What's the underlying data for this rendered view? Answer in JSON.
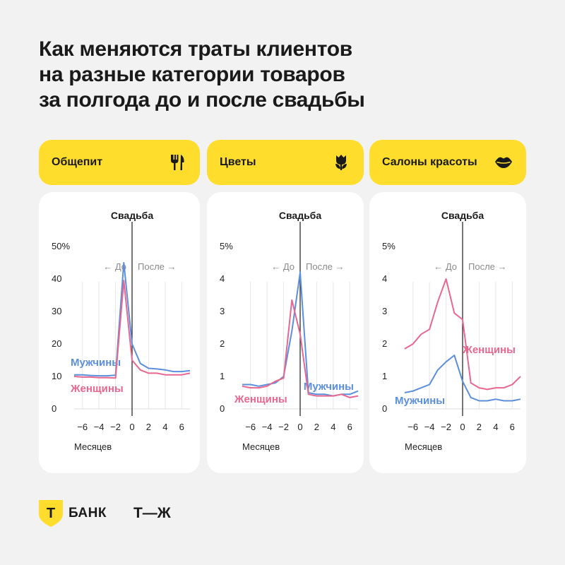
{
  "title_lines": [
    "Как меняются траты клиентов",
    "на разные категории товаров",
    "за полгода до и после свадьбы"
  ],
  "labels": {
    "wedding": "Свадьба",
    "before": "← До",
    "after": "После →",
    "months": "Месяцев"
  },
  "colors": {
    "accent": "#ffdd2d",
    "men": "#5b8fdc",
    "women": "#e8678f"
  },
  "footer": {
    "bank": "БАНК",
    "tzh": "Т—Ж",
    "bank_logo_letter": "Т"
  },
  "chart_data": [
    {
      "type": "line",
      "category": "Общепит",
      "icon": "fork-knife-icon",
      "x": [
        -7,
        -6,
        -5,
        -4,
        -3,
        -2,
        -1,
        0,
        1,
        2,
        3,
        4,
        5,
        6,
        7
      ],
      "ylim": [
        0,
        50
      ],
      "yticks": [
        "0",
        "10",
        "20",
        "30",
        "40",
        "50%"
      ],
      "xticks": [
        "−6",
        "−4",
        "−2",
        "0",
        "2",
        "4",
        "6"
      ],
      "series": [
        {
          "name": "Мужчины",
          "values": [
            10.5,
            10.5,
            10.3,
            10.2,
            10.2,
            10.4,
            45.0,
            20.0,
            14.0,
            12.5,
            12.3,
            12.0,
            11.5,
            11.5,
            11.8
          ]
        },
        {
          "name": "Женщины",
          "values": [
            10.0,
            9.8,
            9.8,
            9.6,
            9.6,
            9.5,
            39.5,
            15.0,
            12.0,
            11.0,
            11.0,
            10.5,
            10.5,
            10.5,
            11.0
          ]
        }
      ]
    },
    {
      "type": "line",
      "category": "Цветы",
      "icon": "tulip-icon",
      "x": [
        -7,
        -6,
        -5,
        -4,
        -3,
        -2,
        -1,
        0,
        1,
        2,
        3,
        4,
        5,
        6,
        7
      ],
      "ylim": [
        0,
        5
      ],
      "yticks": [
        "0",
        "1",
        "2",
        "3",
        "4",
        "5%"
      ],
      "xticks": [
        "−6",
        "−4",
        "−2",
        "0",
        "2",
        "4",
        "6"
      ],
      "series": [
        {
          "name": "Мужчины",
          "values": [
            0.75,
            0.75,
            0.7,
            0.75,
            0.8,
            1.0,
            2.4,
            4.2,
            0.5,
            0.45,
            0.45,
            0.4,
            0.45,
            0.45,
            0.55
          ]
        },
        {
          "name": "Женщины",
          "values": [
            0.7,
            0.65,
            0.65,
            0.7,
            0.85,
            0.95,
            3.35,
            2.3,
            0.45,
            0.4,
            0.4,
            0.4,
            0.45,
            0.35,
            0.4
          ]
        }
      ]
    },
    {
      "type": "line",
      "category": "Салоны красоты",
      "icon": "lips-icon",
      "x": [
        -7,
        -6,
        -5,
        -4,
        -3,
        -2,
        -1,
        0,
        1,
        2,
        3,
        4,
        5,
        6,
        7
      ],
      "ylim": [
        0,
        5
      ],
      "yticks": [
        "0",
        "1",
        "2",
        "3",
        "4",
        "5%"
      ],
      "xticks": [
        "−6",
        "−4",
        "−2",
        "0",
        "2",
        "4",
        "6"
      ],
      "series": [
        {
          "name": "Мужчины",
          "values": [
            0.5,
            0.55,
            0.65,
            0.75,
            1.2,
            1.45,
            1.65,
            0.85,
            0.35,
            0.25,
            0.25,
            0.3,
            0.25,
            0.25,
            0.3
          ]
        },
        {
          "name": "Женщины",
          "values": [
            1.85,
            2.0,
            2.3,
            2.45,
            3.3,
            4.0,
            2.95,
            2.75,
            0.8,
            0.65,
            0.6,
            0.65,
            0.65,
            0.75,
            1.0
          ]
        }
      ]
    }
  ]
}
